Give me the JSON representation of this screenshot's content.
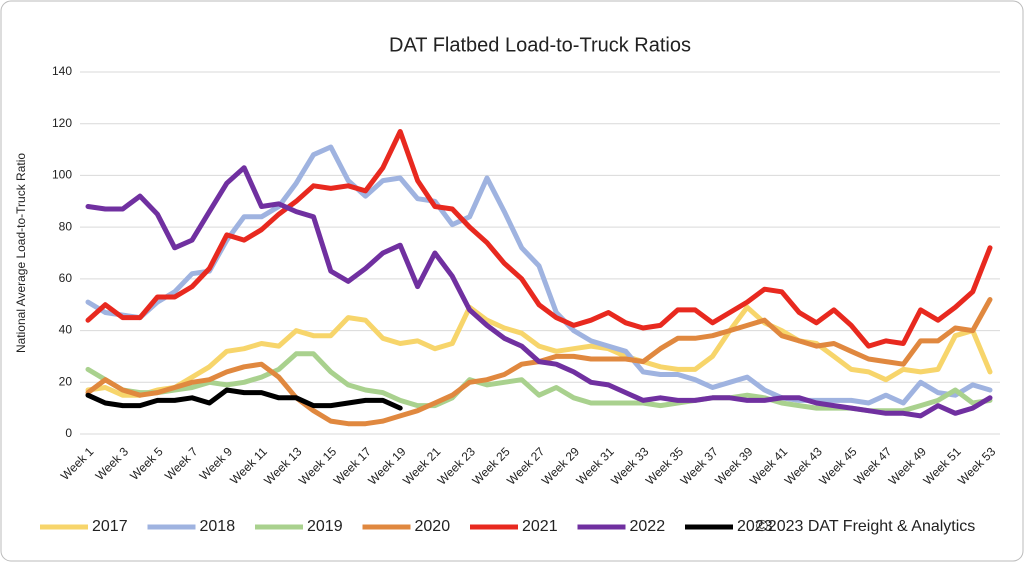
{
  "chart_data": {
    "type": "line",
    "title": "DAT Flatbed Load-to-Truck Ratios",
    "y_label": "National Average Load-to-Truck Ratio",
    "source": "©2023 DAT Freight & Analytics",
    "categories": [
      "Week 1",
      null,
      "Week 3",
      null,
      "Week 5",
      null,
      "Week 7",
      null,
      "Week 9",
      null,
      "Week 11",
      null,
      "Week 13",
      null,
      "Week 15",
      null,
      "Week 17",
      null,
      "Week 19",
      null,
      "Week 21",
      null,
      "Week 23",
      null,
      "Week 25",
      null,
      "Week 27",
      null,
      "Week 29",
      null,
      "Week 31",
      null,
      "Week 33",
      null,
      "Week 35",
      null,
      "Week 37",
      null,
      "Week 39",
      null,
      "Week 41",
      null,
      "Week 43",
      null,
      "Week 45",
      null,
      "Week 47",
      null,
      "Week 49",
      null,
      "Week 51",
      null,
      "Week 53"
    ],
    "ylim": [
      0,
      140
    ],
    "yticks": [
      0,
      20,
      40,
      60,
      80,
      100,
      120,
      140
    ],
    "grid": true,
    "series": [
      {
        "name": "2017",
        "color": "#f7d56b",
        "values": [
          17,
          18,
          15,
          15,
          17,
          18,
          22,
          26,
          32,
          33,
          35,
          34,
          40,
          38,
          38,
          45,
          44,
          37,
          35,
          36,
          33,
          35,
          49,
          44,
          41,
          39,
          34,
          32,
          33,
          34,
          33,
          30,
          28,
          26,
          25,
          25,
          30,
          40,
          49,
          43,
          40,
          36,
          35,
          30,
          25,
          24,
          21,
          25,
          24,
          25,
          38,
          40,
          24
        ]
      },
      {
        "name": "2018",
        "color": "#9fb3e0",
        "values": [
          51,
          47,
          46,
          45,
          51,
          55,
          62,
          63,
          75,
          84,
          84,
          88,
          97,
          108,
          111,
          98,
          92,
          98,
          99,
          91,
          90,
          81,
          84,
          99,
          86,
          72,
          65,
          47,
          40,
          36,
          34,
          32,
          24,
          23,
          23,
          21,
          18,
          20,
          22,
          17,
          14,
          13,
          13,
          13,
          13,
          12,
          15,
          12,
          20,
          16,
          15,
          19,
          17
        ]
      },
      {
        "name": "2019",
        "color": "#a9d18e",
        "values": [
          25,
          21,
          17,
          16,
          16,
          17,
          18,
          20,
          19,
          20,
          22,
          25,
          31,
          31,
          24,
          19,
          17,
          16,
          13,
          11,
          11,
          14,
          21,
          19,
          20,
          21,
          15,
          18,
          14,
          12,
          12,
          12,
          12,
          11,
          12,
          13,
          14,
          14,
          15,
          14,
          12,
          11,
          10,
          10,
          10,
          9,
          9,
          9,
          11,
          13,
          17,
          12,
          13
        ]
      },
      {
        "name": "2020",
        "color": "#e0883f",
        "values": [
          16,
          21,
          17,
          15,
          16,
          18,
          20,
          21,
          24,
          26,
          27,
          22,
          14,
          9,
          5,
          4,
          4,
          5,
          7,
          9,
          12,
          15,
          20,
          21,
          23,
          27,
          28,
          30,
          30,
          29,
          29,
          29,
          28,
          33,
          37,
          37,
          38,
          40,
          42,
          44,
          38,
          36,
          34,
          35,
          32,
          29,
          28,
          27,
          36,
          36,
          41,
          40,
          52
        ]
      },
      {
        "name": "2021",
        "color": "#e8291f",
        "values": [
          44,
          50,
          45,
          45,
          53,
          53,
          57,
          64,
          77,
          75,
          79,
          85,
          90,
          96,
          95,
          96,
          94,
          103,
          117,
          98,
          88,
          87,
          80,
          74,
          66,
          60,
          50,
          45,
          42,
          44,
          47,
          43,
          41,
          42,
          48,
          48,
          43,
          47,
          51,
          56,
          55,
          47,
          43,
          48,
          42,
          34,
          36,
          35,
          48,
          44,
          49,
          55,
          72
        ]
      },
      {
        "name": "2022",
        "color": "#7030a0",
        "values": [
          88,
          87,
          87,
          92,
          85,
          72,
          75,
          86,
          97,
          103,
          88,
          89,
          86,
          84,
          63,
          59,
          64,
          70,
          73,
          57,
          70,
          61,
          48,
          42,
          37,
          34,
          28,
          27,
          24,
          20,
          19,
          16,
          13,
          14,
          13,
          13,
          14,
          14,
          13,
          13,
          14,
          14,
          12,
          11,
          10,
          9,
          8,
          8,
          7,
          11,
          8,
          10,
          14
        ]
      },
      {
        "name": "2023",
        "color": "#000000",
        "values": [
          15,
          12,
          11,
          11,
          13,
          13,
          14,
          12,
          17,
          16,
          16,
          14,
          14,
          11,
          11,
          12,
          13,
          13,
          10,
          null,
          null,
          null,
          null,
          null,
          null,
          null,
          null,
          null,
          null,
          null,
          null,
          null,
          null,
          null,
          null,
          null,
          null,
          null,
          null,
          null,
          null,
          null,
          null,
          null,
          null,
          null,
          null,
          null,
          null,
          null,
          null,
          null,
          null
        ]
      }
    ]
  }
}
